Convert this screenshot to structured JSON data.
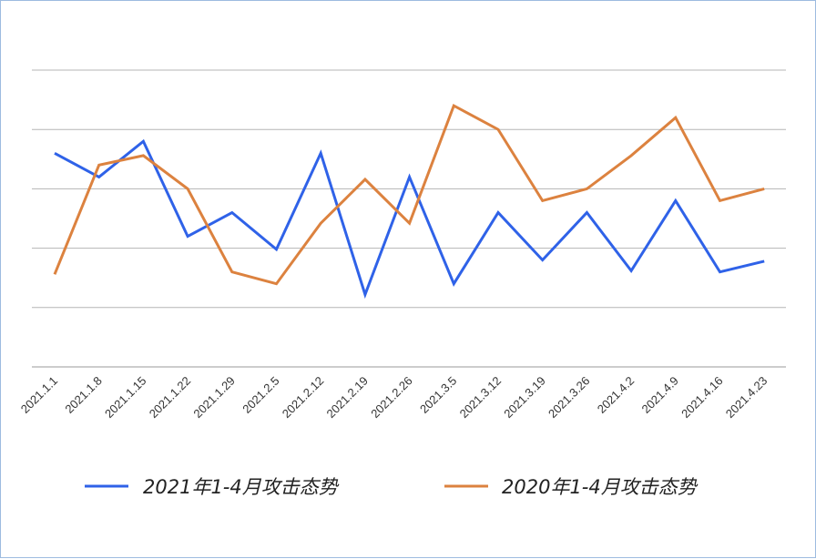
{
  "chart_data": {
    "type": "line",
    "title": "",
    "xlabel": "",
    "ylabel": "",
    "grid": true,
    "y_gridlines": 6,
    "legend_position": "bottom",
    "categories": [
      "2021.1.1",
      "2021.1.8",
      "2021.1.15",
      "2021.1.22",
      "2021.1.29",
      "2021.2.5",
      "2021.2.12",
      "2021.2.19",
      "2021.2.26",
      "2021.3.5",
      "2021.3.12",
      "2021.3.19",
      "2021.3.26",
      "2021.4.2",
      "2021.4.9",
      "2021.4.16",
      "2021.4.23"
    ],
    "ylim": [
      0,
      5
    ],
    "series": [
      {
        "name": "2021年1-4月攻击态势",
        "color": "#2f62e8",
        "values": [
          3.6,
          3.2,
          3.8,
          2.2,
          2.6,
          1.98,
          3.6,
          1.22,
          3.2,
          1.4,
          2.6,
          1.8,
          2.6,
          1.62,
          2.8,
          1.6,
          1.78
        ]
      },
      {
        "name": "2020年1-4月攻击态势",
        "color": "#dc823f",
        "values": [
          1.56,
          3.4,
          3.56,
          3.0,
          1.6,
          1.4,
          2.42,
          3.16,
          2.42,
          4.4,
          4.0,
          2.8,
          3.0,
          3.56,
          4.2,
          2.8,
          3.0
        ]
      }
    ]
  }
}
